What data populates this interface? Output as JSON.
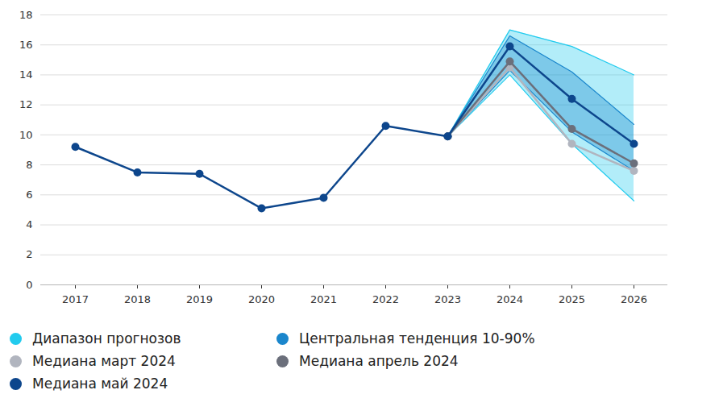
{
  "chart_data": {
    "type": "line",
    "categories": [
      "2017",
      "2018",
      "2019",
      "2020",
      "2021",
      "2022",
      "2023",
      "2024",
      "2025",
      "2026"
    ],
    "ylim": [
      0,
      18
    ],
    "yticks": [
      0,
      2,
      4,
      6,
      8,
      10,
      12,
      14,
      16,
      18
    ],
    "grid": true,
    "legend": "bottom",
    "series": [
      {
        "name": "Диапазон прогнозов",
        "type": "area",
        "color": "#22cbee",
        "low": [
          null,
          null,
          null,
          null,
          null,
          null,
          9.9,
          14.0,
          9.4,
          5.6
        ],
        "high": [
          null,
          null,
          null,
          null,
          null,
          null,
          9.9,
          17.0,
          15.9,
          14.0
        ]
      },
      {
        "name": "Центральная тенденция 10-90%",
        "type": "area",
        "color": "#1a86cc",
        "low": [
          null,
          null,
          null,
          null,
          null,
          null,
          9.9,
          14.3,
          10.2,
          7.6
        ],
        "high": [
          null,
          null,
          null,
          null,
          null,
          null,
          9.9,
          16.6,
          14.2,
          10.7
        ]
      },
      {
        "name": "Медиана март 2024",
        "type": "line",
        "color": "#b1b5bf",
        "marker": "circle",
        "values": [
          null,
          null,
          null,
          null,
          null,
          null,
          9.9,
          14.5,
          9.4,
          7.6
        ]
      },
      {
        "name": "Медиана апрель 2024",
        "type": "line",
        "color": "#6b6f7b",
        "marker": "circle",
        "values": [
          null,
          null,
          null,
          null,
          null,
          null,
          9.9,
          14.9,
          10.4,
          8.1
        ]
      },
      {
        "name": "Медиана май 2024",
        "type": "line",
        "color": "#0d468c",
        "marker": "circle",
        "values": [
          9.2,
          7.5,
          7.4,
          5.1,
          5.8,
          10.6,
          9.9,
          15.9,
          12.4,
          9.4
        ]
      }
    ]
  }
}
